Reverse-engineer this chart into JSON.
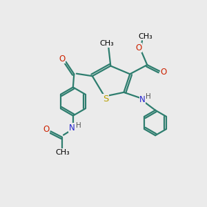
{
  "bg_color": "#ebebeb",
  "bond_color": "#2d7d6e",
  "bond_width": 1.6,
  "S_color": "#b8a000",
  "N_color": "#2222cc",
  "O_color": "#cc2200",
  "font_size": 8.5,
  "figsize": [
    3.0,
    3.0
  ],
  "dpi": 100,
  "xlim": [
    0,
    10
  ],
  "ylim": [
    0,
    10
  ]
}
